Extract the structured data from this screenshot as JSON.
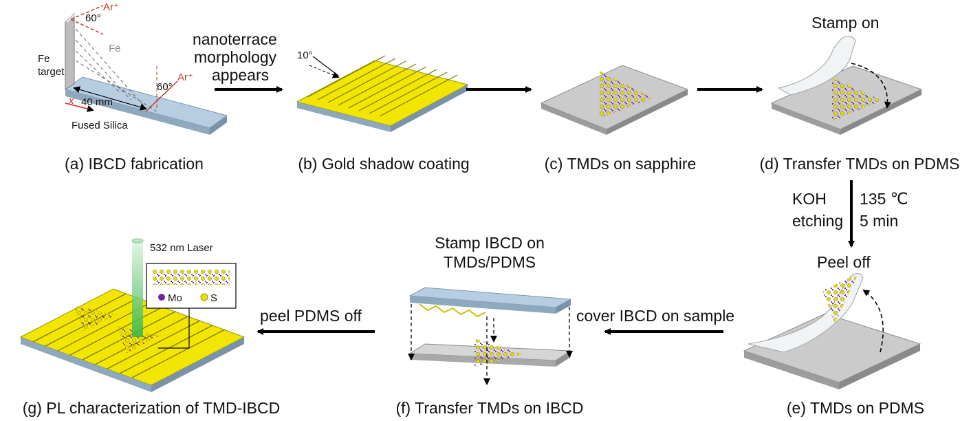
{
  "panels": {
    "a": {
      "caption": "(a) IBCD fabrication",
      "fe_target": "Fe\ntarget",
      "fe": "Fe",
      "ar1": "Ar⁺",
      "ar2": "Ar⁺",
      "angle1": "60°",
      "angle2": "60°",
      "distance": "40 mm",
      "axis": "x",
      "substrate": "Fused Silica"
    },
    "b": {
      "caption": "(b) Gold shadow coating",
      "angle": "10°"
    },
    "c": {
      "caption": "(c) TMDs on sapphire"
    },
    "d": {
      "caption": "(d) Transfer TMDs on PDMS",
      "title": "Stamp on"
    },
    "e": {
      "caption": "(e) TMDs on PDMS",
      "title": "Peel off"
    },
    "f": {
      "caption": "(f) Transfer TMDs on IBCD",
      "title_line1": "Stamp IBCD on",
      "title_line2": "TMDs/PDMS"
    },
    "g": {
      "caption": "(g) PL characterization of TMD-IBCD",
      "laser": "532 nm Laser",
      "legend_mo": "Mo",
      "legend_s": "S"
    }
  },
  "arrows": {
    "a_to_b": {
      "line1": "nanoterrace",
      "line2": "morphology",
      "line3": "appears"
    },
    "d_to_e": {
      "left1": "KOH",
      "left2": "etching",
      "right1": "135 ℃",
      "right2": "5 min"
    },
    "e_to_f": {
      "label": "cover IBCD on sample"
    },
    "f_to_g": {
      "label": "peel PDMS off"
    }
  },
  "colors": {
    "gold": "#f2e600",
    "gold_dark": "#8c8a00",
    "slab": "#a9c1d6",
    "gray": "#c9c9c9",
    "mo": "#7a1fa2",
    "s": "#e8e000",
    "laser": "#3fbf5a"
  }
}
